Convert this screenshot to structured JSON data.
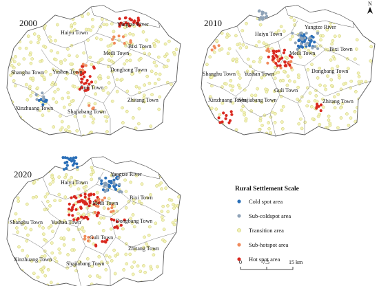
{
  "panels": [
    {
      "year": "2000",
      "towns": [
        "Haiyu Town",
        "Meili Town",
        "Bixi Town",
        "Yushan Town",
        "Dongbang Town",
        "Shanghu Town",
        "Guli Town",
        "Zhitang Town",
        "Xinzhuang Town",
        "Shajiabang Town"
      ],
      "river": "Yangtze River"
    },
    {
      "year": "2010",
      "towns": [
        "Haiyu Town",
        "Meili Town",
        "Bixi Town",
        "Yushan Town",
        "Dongbang Town",
        "Shanghu Town",
        "Guli Town",
        "Zhitang Town",
        "Xinzhuang Town",
        "Shajiabang Town"
      ],
      "river": "Yangtze River"
    },
    {
      "year": "2020",
      "towns": [
        "Haiyu Town",
        "Meili Town",
        "Bixi Town",
        "Yushan Town",
        "Dongbang Town",
        "Shanghu Town",
        "Guli Town",
        "Zhitang Town",
        "Xinzhuang Town",
        "Shajiabang Town"
      ],
      "river": "Yangtze River"
    }
  ],
  "legend": {
    "title": "Rural Settlement Scale",
    "items": [
      {
        "label": "Cold spot area",
        "color": "#2a6fb8"
      },
      {
        "label": "Sub-coldspot area",
        "color": "#8fa3b8"
      },
      {
        "label": "Transition area",
        "color": "#f3f2b8"
      },
      {
        "label": "Sub-hotspot area",
        "color": "#f08a5b"
      },
      {
        "label": "Hot spot area",
        "color": "#d9281f"
      }
    ]
  },
  "scale_bar": {
    "ticks": [
      "0",
      "7.5",
      "15 km"
    ]
  },
  "north": "N",
  "colors": {
    "boundary": "#555555",
    "dot_outline": "#c9c96a"
  }
}
